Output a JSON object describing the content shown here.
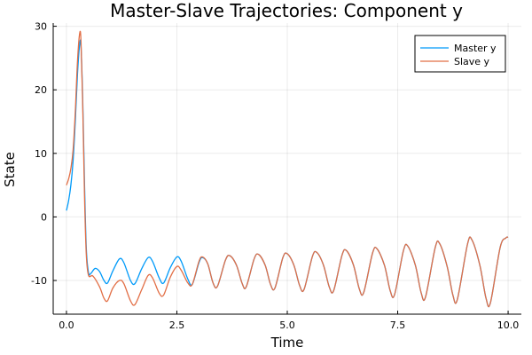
{
  "chart_data": {
    "type": "line",
    "title": "Master-Slave Trajectories: Component y",
    "xlabel": "Time",
    "ylabel": "State",
    "xlim": [
      -0.3,
      10.3
    ],
    "ylim": [
      -15.3,
      30.5
    ],
    "xticks": [
      0,
      2.5,
      5,
      7.5,
      10
    ],
    "xtick_labels": [
      "0.0",
      "2.5",
      "5.0",
      "7.5",
      "10.0"
    ],
    "yticks": [
      -10,
      0,
      10,
      20,
      30
    ],
    "ytick_labels": [
      "-10",
      "0",
      "10",
      "20",
      "30"
    ],
    "grid": true,
    "legend_position": "top-right",
    "series": [
      {
        "name": "Master y",
        "color": "#009af9",
        "points": [
          [
            0.0,
            1.0
          ],
          [
            0.05,
            2.6
          ],
          [
            0.1,
            5.0
          ],
          [
            0.15,
            8.8
          ],
          [
            0.2,
            15.0
          ],
          [
            0.25,
            22.5
          ],
          [
            0.3,
            27.2
          ],
          [
            0.33,
            26.8
          ],
          [
            0.37,
            18.0
          ],
          [
            0.41,
            5.0
          ],
          [
            0.45,
            -5.0
          ],
          [
            0.5,
            -8.8
          ],
          [
            0.55,
            -8.9
          ],
          [
            0.65,
            -8.1
          ],
          [
            0.75,
            -8.6
          ],
          [
            0.85,
            -10.0
          ],
          [
            0.93,
            -10.4
          ],
          [
            1.05,
            -8.5
          ],
          [
            1.2,
            -6.6
          ],
          [
            1.3,
            -7.2
          ],
          [
            1.45,
            -10.0
          ],
          [
            1.55,
            -10.5
          ],
          [
            1.7,
            -8.2
          ],
          [
            1.85,
            -6.4
          ],
          [
            1.95,
            -7.0
          ],
          [
            2.1,
            -9.6
          ],
          [
            2.2,
            -10.4
          ],
          [
            2.35,
            -8.0
          ],
          [
            2.5,
            -6.3
          ],
          [
            2.6,
            -7.0
          ],
          [
            2.75,
            -9.8
          ],
          [
            2.85,
            -10.6
          ],
          [
            3.0,
            -7.2
          ],
          [
            3.08,
            -6.4
          ],
          [
            3.2,
            -7.4
          ],
          [
            3.32,
            -10.4
          ],
          [
            3.42,
            -10.9
          ],
          [
            3.6,
            -6.8
          ],
          [
            3.7,
            -6.1
          ],
          [
            3.85,
            -7.6
          ],
          [
            3.98,
            -10.5
          ],
          [
            4.07,
            -11.0
          ],
          [
            4.25,
            -6.6
          ],
          [
            4.35,
            -5.9
          ],
          [
            4.5,
            -7.6
          ],
          [
            4.62,
            -10.6
          ],
          [
            4.72,
            -11.2
          ],
          [
            4.9,
            -6.4
          ],
          [
            5.0,
            -5.8
          ],
          [
            5.15,
            -7.6
          ],
          [
            5.28,
            -10.8
          ],
          [
            5.38,
            -11.4
          ],
          [
            5.57,
            -6.2
          ],
          [
            5.67,
            -5.6
          ],
          [
            5.82,
            -7.6
          ],
          [
            5.95,
            -11.0
          ],
          [
            6.05,
            -11.6
          ],
          [
            6.24,
            -6.0
          ],
          [
            6.34,
            -5.3
          ],
          [
            6.5,
            -7.6
          ],
          [
            6.63,
            -11.3
          ],
          [
            6.73,
            -11.9
          ],
          [
            6.93,
            -5.7
          ],
          [
            7.03,
            -5.0
          ],
          [
            7.2,
            -7.6
          ],
          [
            7.33,
            -11.6
          ],
          [
            7.43,
            -12.2
          ],
          [
            7.63,
            -5.3
          ],
          [
            7.73,
            -4.6
          ],
          [
            7.9,
            -7.6
          ],
          [
            8.03,
            -11.9
          ],
          [
            8.13,
            -12.6
          ],
          [
            8.35,
            -4.8
          ],
          [
            8.45,
            -4.2
          ],
          [
            8.62,
            -7.8
          ],
          [
            8.75,
            -12.3
          ],
          [
            8.85,
            -13.0
          ],
          [
            9.08,
            -4.3
          ],
          [
            9.18,
            -3.6
          ],
          [
            9.36,
            -7.6
          ],
          [
            9.5,
            -12.8
          ],
          [
            9.6,
            -13.5
          ],
          [
            9.82,
            -4.8
          ],
          [
            9.95,
            -3.3
          ],
          [
            10.0,
            -3.2
          ]
        ]
      },
      {
        "name": "Slave y",
        "color": "#e26f46",
        "points": [
          [
            0.0,
            5.0
          ],
          [
            0.05,
            6.0
          ],
          [
            0.1,
            7.6
          ],
          [
            0.15,
            10.5
          ],
          [
            0.2,
            16.5
          ],
          [
            0.25,
            24.5
          ],
          [
            0.3,
            28.9
          ],
          [
            0.33,
            27.5
          ],
          [
            0.37,
            17.0
          ],
          [
            0.41,
            3.0
          ],
          [
            0.45,
            -6.0
          ],
          [
            0.5,
            -9.2
          ],
          [
            0.6,
            -9.3
          ],
          [
            0.75,
            -11.0
          ],
          [
            0.85,
            -12.8
          ],
          [
            0.93,
            -13.2
          ],
          [
            1.05,
            -11.2
          ],
          [
            1.2,
            -10.0
          ],
          [
            1.3,
            -10.5
          ],
          [
            1.45,
            -13.2
          ],
          [
            1.55,
            -13.8
          ],
          [
            1.7,
            -11.5
          ],
          [
            1.85,
            -9.2
          ],
          [
            1.95,
            -9.6
          ],
          [
            2.1,
            -12.0
          ],
          [
            2.2,
            -12.3
          ],
          [
            2.35,
            -9.5
          ],
          [
            2.5,
            -7.8
          ],
          [
            2.6,
            -8.4
          ],
          [
            2.75,
            -10.4
          ],
          [
            2.85,
            -10.6
          ],
          [
            3.0,
            -7.0
          ],
          [
            3.08,
            -6.3
          ],
          [
            3.2,
            -7.4
          ],
          [
            3.32,
            -10.4
          ],
          [
            3.42,
            -10.9
          ],
          [
            3.6,
            -6.8
          ],
          [
            3.7,
            -6.1
          ],
          [
            3.85,
            -7.6
          ],
          [
            3.98,
            -10.5
          ],
          [
            4.07,
            -11.0
          ],
          [
            4.25,
            -6.6
          ],
          [
            4.35,
            -5.9
          ],
          [
            4.5,
            -7.6
          ],
          [
            4.62,
            -10.6
          ],
          [
            4.72,
            -11.2
          ],
          [
            4.9,
            -6.4
          ],
          [
            5.0,
            -5.8
          ],
          [
            5.15,
            -7.6
          ],
          [
            5.28,
            -10.8
          ],
          [
            5.38,
            -11.4
          ],
          [
            5.57,
            -6.2
          ],
          [
            5.67,
            -5.6
          ],
          [
            5.82,
            -7.6
          ],
          [
            5.95,
            -11.0
          ],
          [
            6.05,
            -11.6
          ],
          [
            6.24,
            -6.0
          ],
          [
            6.34,
            -5.3
          ],
          [
            6.5,
            -7.6
          ],
          [
            6.63,
            -11.3
          ],
          [
            6.73,
            -11.9
          ],
          [
            6.93,
            -5.7
          ],
          [
            7.03,
            -5.0
          ],
          [
            7.2,
            -7.6
          ],
          [
            7.33,
            -11.6
          ],
          [
            7.43,
            -12.2
          ],
          [
            7.63,
            -5.3
          ],
          [
            7.73,
            -4.6
          ],
          [
            7.9,
            -7.6
          ],
          [
            8.03,
            -11.9
          ],
          [
            8.13,
            -12.6
          ],
          [
            8.35,
            -4.8
          ],
          [
            8.45,
            -4.2
          ],
          [
            8.62,
            -7.8
          ],
          [
            8.75,
            -12.3
          ],
          [
            8.85,
            -13.0
          ],
          [
            9.08,
            -4.3
          ],
          [
            9.18,
            -3.6
          ],
          [
            9.36,
            -7.6
          ],
          [
            9.5,
            -12.8
          ],
          [
            9.6,
            -13.5
          ],
          [
            9.82,
            -4.8
          ],
          [
            9.95,
            -3.3
          ],
          [
            10.0,
            -3.2
          ]
        ]
      }
    ]
  }
}
